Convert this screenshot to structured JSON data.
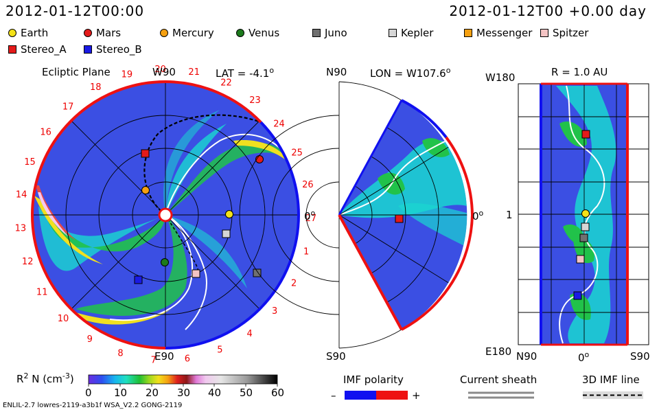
{
  "header": {
    "left_date": "2012-01-12T00:00",
    "right_date": "2012-01-12T00 +0.00 day"
  },
  "legend": [
    {
      "label": "Earth",
      "shape": "circle",
      "color": "#f4e218"
    },
    {
      "label": "Mars",
      "shape": "circle",
      "color": "#e41a1a"
    },
    {
      "label": "Mercury",
      "shape": "circle",
      "color": "#f5a011"
    },
    {
      "label": "Venus",
      "shape": "circle",
      "color": "#1c7a1c"
    },
    {
      "label": "Juno",
      "shape": "square",
      "color": "#707070"
    },
    {
      "label": "Kepler",
      "shape": "square",
      "color": "#d6d6d6"
    },
    {
      "label": "Messenger",
      "shape": "square",
      "color": "#f5a011"
    },
    {
      "label": "Spitzer",
      "shape": "square",
      "color": "#f4c4c4"
    },
    {
      "label": "Stereo_A",
      "shape": "square",
      "color": "#e41a1a"
    },
    {
      "label": "Stereo_B",
      "shape": "square",
      "color": "#1a1ae4"
    }
  ],
  "ecliptic": {
    "title": "Ecliptic Plane",
    "top_label": "W90",
    "lat_label": "LAT = -4.1",
    "lat_unit": "o",
    "bottom_label": "E90",
    "zero_label": "0",
    "zero_unit": "o",
    "carrington_numbers": [
      "20",
      "21",
      "22",
      "23",
      "24",
      "25",
      "26",
      "27",
      "1",
      "2",
      "3",
      "4",
      "5",
      "6",
      "7",
      "8",
      "9",
      "10",
      "11",
      "12",
      "13",
      "14",
      "15",
      "16",
      "17",
      "18",
      "19"
    ]
  },
  "meridional": {
    "top_label": "N90",
    "lon_label": "LON = W107.6",
    "lon_unit": "o",
    "zero_label": "0",
    "zero_unit": "o",
    "bottom_label": "S90"
  },
  "radial": {
    "title": "R = 1.0 AU",
    "top_label": "W180",
    "mid_label": "1",
    "bottom_label": "E180",
    "x_left": "N90",
    "x_mid": "0",
    "x_mid_unit": "o",
    "x_right": "S90"
  },
  "colorbar": {
    "label": "R",
    "label_sup": "2",
    "label_rest": " N (cm",
    "label_sup2": "-3",
    "label_close": ")",
    "ticks": [
      "0",
      "10",
      "20",
      "30",
      "40",
      "50",
      "60"
    ]
  },
  "imf": {
    "title": "IMF polarity",
    "minus": "–",
    "plus": "+",
    "negative_color": "#1010f0",
    "positive_color": "#ee1111"
  },
  "sheath": {
    "title": "Current sheath"
  },
  "imfline": {
    "title": "3D IMF line"
  },
  "footer": "ENLIL-2.7 lowres-2119-a3b1f WSA_V2.2 GONG-2119"
}
